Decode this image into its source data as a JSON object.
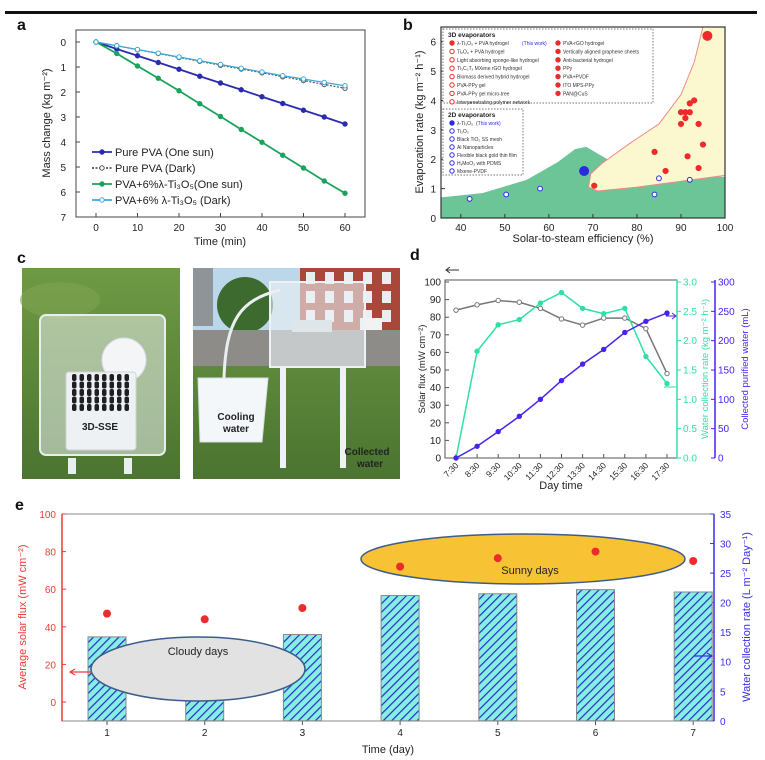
{
  "panel_labels": {
    "a": "a",
    "b": "b",
    "c": "c",
    "d": "d",
    "e": "e"
  },
  "photos": {
    "left_label": "3D-SSE",
    "cooling_line1": "Cooling",
    "cooling_line2": "water",
    "collected_line1": "Collected",
    "collected_line2": "water"
  },
  "chart_data": [
    {
      "id": "a",
      "type": "line",
      "xlabel": "Time (min)",
      "ylabel": "Mass change (kg m⁻²)",
      "xlim": [
        -4.8,
        64.8
      ],
      "ylim": [
        -0.48,
        7
      ],
      "y_inverted": true,
      "xticks": [
        0,
        10,
        20,
        30,
        40,
        50,
        60
      ],
      "yticks": [
        0,
        1,
        2,
        3,
        4,
        5,
        6,
        7
      ],
      "x": [
        0,
        5,
        10,
        15,
        20,
        25,
        30,
        35,
        40,
        45,
        50,
        55,
        60
      ],
      "legend_position": "bottom-left",
      "series": [
        {
          "name": "Pure PVA (One sun)",
          "color": "#2b2bb0",
          "marker": "filled",
          "dash": false,
          "values": [
            0,
            0.28,
            0.55,
            0.82,
            1.09,
            1.37,
            1.64,
            1.91,
            2.19,
            2.46,
            2.73,
            3.0,
            3.28
          ]
        },
        {
          "name": "Pure PVA (Dark)",
          "color": "#555555",
          "marker": "open",
          "dash": true,
          "values": [
            0,
            0.15,
            0.31,
            0.46,
            0.62,
            0.77,
            0.93,
            1.08,
            1.23,
            1.39,
            1.54,
            1.7,
            1.85
          ]
        },
        {
          "name": "PVA+6%λ-Ti₃O₅(One sun)",
          "color": "#1aa35a",
          "marker": "filled",
          "dash": false,
          "values": [
            0,
            0.46,
            0.96,
            1.45,
            1.95,
            2.47,
            2.98,
            3.5,
            4.01,
            4.53,
            5.04,
            5.56,
            6.05
          ]
        },
        {
          "name": "PVA+6% λ-Ti₃O₅ (Dark)",
          "color": "#3aa9d8",
          "marker": "open",
          "dash": false,
          "values": [
            0,
            0.15,
            0.3,
            0.45,
            0.6,
            0.75,
            0.9,
            1.05,
            1.2,
            1.35,
            1.48,
            1.62,
            1.75
          ]
        }
      ]
    },
    {
      "id": "b",
      "type": "scatter",
      "xlabel": "Solar-to-steam efficiency (%)",
      "ylabel": "Evaporation rate (kg m⁻² h⁻¹)",
      "xlim": [
        35.5,
        100
      ],
      "ylim": [
        0,
        6.5
      ],
      "xticks": [
        40,
        50,
        60,
        70,
        80,
        90,
        100
      ],
      "yticks": [
        0,
        1,
        2,
        3,
        4,
        5,
        6
      ],
      "colors": {
        "3d": "#ee2a2a",
        "2d": "#2a2ae0",
        "green_region": "#6cc596",
        "yellow_region": "#fbf8cf",
        "yellow_border": "#f08a8a"
      },
      "green_region": [
        [
          35.5,
          0
        ],
        [
          35.5,
          0.7
        ],
        [
          45,
          0.85
        ],
        [
          55,
          1.3
        ],
        [
          62,
          1.9
        ],
        [
          66,
          2.35
        ],
        [
          68.5,
          2.42
        ],
        [
          71,
          2.2
        ],
        [
          75,
          1.85
        ],
        [
          82,
          1.62
        ],
        [
          90,
          1.45
        ],
        [
          100,
          1.4
        ],
        [
          100,
          0
        ]
      ],
      "yellow_region": [
        [
          69,
          1.05
        ],
        [
          69.5,
          1.5
        ],
        [
          72,
          1.85
        ],
        [
          78,
          2.5
        ],
        [
          85,
          3.2
        ],
        [
          90,
          4.2
        ],
        [
          93,
          5.3
        ],
        [
          95,
          6.5
        ],
        [
          100,
          6.5
        ],
        [
          100,
          1.45
        ],
        [
          90,
          1.25
        ],
        [
          80,
          1.05
        ],
        [
          71,
          0.92
        ]
      ],
      "legend_3d": {
        "title": "3D evaporators",
        "items_col1": [
          "λ-Ti₃O₅ + PVA hydrogel",
          "Ti₂O₃ + PVA hydrogel",
          "Light absorbing sponge-like hydrogel",
          "Ti₃C₂Tₓ MXene rGO hydrogel",
          "Biomass derived hybrid hydrogel",
          "PVA-PPy gel",
          "PVA-PPy gel micro-tree",
          "Interpenetrating polymer network"
        ],
        "this_work": "(This work)",
        "items_col2": [
          "PVA-rGO hydrogel",
          "Vertically aligned graphene sheets",
          "Anti-bacterial hydrogel",
          "PPy",
          "PVA+PVDF",
          "ITO MPS-PPy",
          "PAN@CuS"
        ]
      },
      "legend_2d": {
        "title": "2D evaporators",
        "items": [
          "λ-Ti₃O₅",
          "Ti₂O₃",
          "Black TiO₂ SS mesh",
          "Al Nanoparticles",
          "Flexible black gold thin film",
          "HₓMoO₃ with PDMS",
          "Mxene-PVDF"
        ],
        "this_work": "(This work)"
      },
      "points_3d": [
        [
          96,
          6.2,
          "big"
        ],
        [
          93,
          4.0
        ],
        [
          92,
          3.9
        ],
        [
          90,
          3.6
        ],
        [
          91,
          3.6
        ],
        [
          92,
          3.6
        ],
        [
          91,
          3.4
        ],
        [
          90,
          3.2
        ],
        [
          94,
          3.2
        ],
        [
          84,
          2.25
        ],
        [
          95,
          2.5
        ],
        [
          91.5,
          2.1
        ],
        [
          86.5,
          1.6
        ],
        [
          94,
          1.7
        ],
        [
          70.3,
          1.1
        ]
      ],
      "points_2d": [
        [
          68,
          1.6,
          "big"
        ],
        [
          92,
          1.3
        ],
        [
          85,
          1.35
        ],
        [
          58,
          1.0
        ],
        [
          42,
          0.65
        ],
        [
          50.3,
          0.8
        ],
        [
          84,
          0.8
        ]
      ]
    },
    {
      "id": "d",
      "type": "line",
      "xlabel": "Day time",
      "categories": [
        "7:30",
        "8:30",
        "9:30",
        "10:30",
        "11:30",
        "12:30",
        "13:30",
        "14:30",
        "15:30",
        "16:30",
        "17:30"
      ],
      "axes": [
        {
          "label": "Solar flux (mW cm⁻²)",
          "ylim": [
            0,
            100
          ],
          "ticks": [
            0,
            10,
            20,
            30,
            40,
            50,
            60,
            70,
            80,
            90,
            100
          ],
          "color": "#333333"
        },
        {
          "label": "Water collection rate (kg m⁻² h⁻¹)",
          "ylim": [
            0,
            3
          ],
          "ticks": [
            "0.0",
            "0.5",
            "1.0",
            "1.5",
            "2.0",
            "2.5",
            "3.0"
          ],
          "color": "#2ee0a8"
        },
        {
          "label": "Collected purified water (mL)",
          "ylim": [
            0,
            300
          ],
          "ticks": [
            0,
            50,
            100,
            150,
            200,
            250,
            300
          ],
          "color": "#4a22ee"
        }
      ],
      "series": [
        {
          "name": "Solar flux",
          "axis": 0,
          "color": "#777777",
          "marker": "open",
          "values": [
            84,
            87,
            89.5,
            88.5,
            85,
            79,
            75.5,
            79.5,
            79.5,
            73.5,
            48
          ]
        },
        {
          "name": "Water collection rate",
          "axis": 1,
          "color": "#2ee0a8",
          "marker": "filled",
          "values": [
            0,
            1.82,
            2.27,
            2.36,
            2.64,
            2.82,
            2.55,
            2.46,
            2.55,
            1.73,
            1.27
          ]
        },
        {
          "name": "Collected purified water",
          "axis": 2,
          "color": "#4a22ee",
          "marker": "filled",
          "values": [
            0,
            20,
            45,
            71,
            100,
            132,
            160,
            185,
            214,
            233,
            247
          ]
        }
      ]
    },
    {
      "id": "e",
      "type": "bar",
      "xlabel": "Time (day)",
      "categories": [
        "1",
        "2",
        "3",
        "4",
        "5",
        "6",
        "7"
      ],
      "left_axis": {
        "label": "Average solar flux (mW cm⁻²)",
        "ylim": [
          -10,
          100
        ],
        "ticks": [
          0,
          20,
          40,
          60,
          80,
          100
        ],
        "color": "#ee3a3a"
      },
      "right_axis": {
        "label": "Water collection rate (L m⁻² Day⁻¹)",
        "ylim": [
          0,
          35
        ],
        "ticks": [
          0,
          5,
          10,
          15,
          20,
          25,
          30,
          35
        ],
        "color": "#3a2ee8"
      },
      "bar_values": [
        14.2,
        14.0,
        14.6,
        21.2,
        21.5,
        22.2,
        21.8
      ],
      "point_values": [
        47,
        44,
        50,
        72,
        76.5,
        80,
        75
      ],
      "bar_fill": "#86efe4",
      "hatch_color": "#2a2ac8",
      "annotations": [
        {
          "text": "Cloudy days",
          "fill": "#e2e2e2",
          "days": [
            1,
            3
          ]
        },
        {
          "text": "Sunny days",
          "fill": "#f7c234",
          "days": [
            4,
            7
          ]
        }
      ]
    }
  ]
}
